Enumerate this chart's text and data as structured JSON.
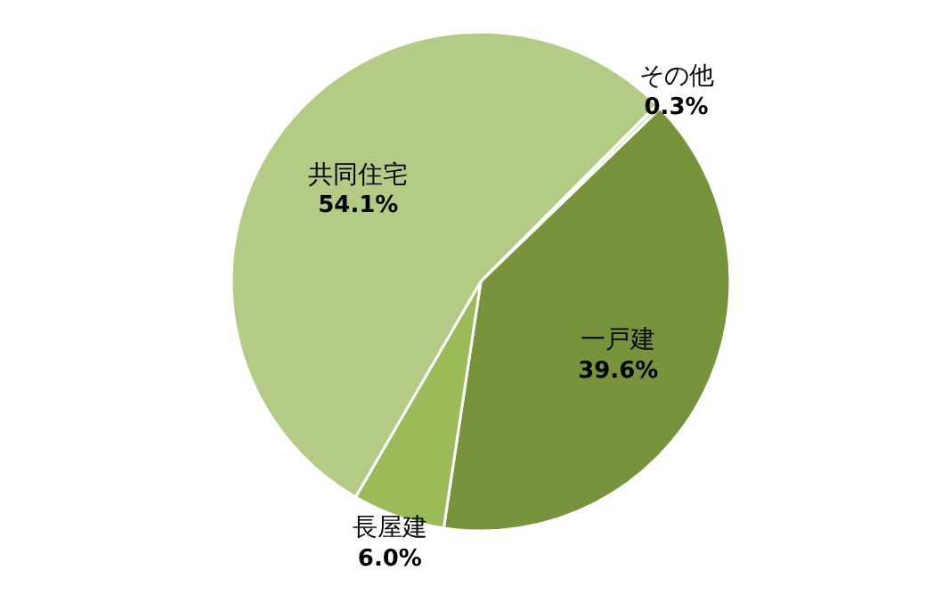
{
  "chart_data": {
    "type": "pie",
    "categories": [
      "一戸建",
      "長屋建",
      "共同住宅",
      "その他"
    ],
    "values": [
      39.6,
      6.0,
      54.1,
      0.3
    ],
    "value_labels": [
      "39.6%",
      "6.0%",
      "54.1%",
      "0.3%"
    ],
    "colors": [
      "#77933c",
      "#9bbb59",
      "#b3cb85",
      "#d7e4bd"
    ],
    "legend": false
  }
}
